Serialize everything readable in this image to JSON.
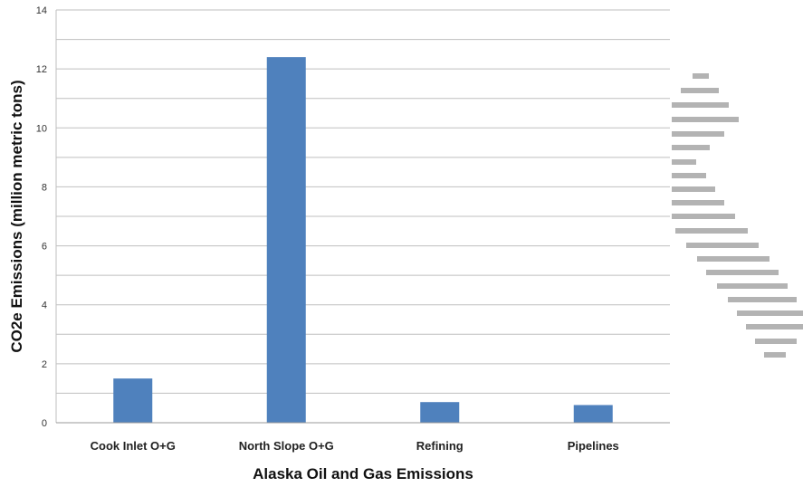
{
  "chart_data": {
    "type": "bar",
    "categories": [
      "Cook Inlet O+G",
      "North Slope O+G",
      "Refining",
      "Pipelines"
    ],
    "values": [
      1.5,
      12.4,
      0.7,
      0.6
    ],
    "xlabel": "Alaska Oil and Gas Emissions",
    "ylabel": "CO2e Emissions  (million metric tons)",
    "ylim": [
      0,
      14
    ],
    "yticks": [
      "0",
      "2",
      "4",
      "6",
      "8",
      "10",
      "12",
      "14"
    ],
    "grid": true,
    "bar_color": "#4f81bd",
    "grid_color": "#bfbfbf",
    "decoration_color": "#b3b3b3"
  }
}
